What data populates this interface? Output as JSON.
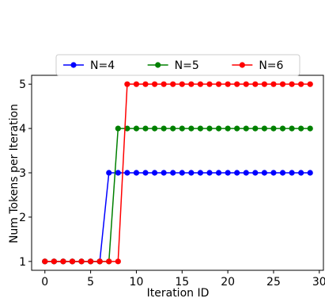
{
  "chart_data": {
    "type": "line",
    "title": "",
    "xlabel": "Iteration ID",
    "ylabel": "Num Tokens per Iteration",
    "xlim": [
      -1.45,
      30.45
    ],
    "ylim": [
      0.8,
      5.2
    ],
    "xticks": [
      0,
      5,
      10,
      15,
      20,
      25,
      30
    ],
    "yticks": [
      1,
      2,
      3,
      4,
      5
    ],
    "grid": false,
    "legend_placement": "top-center, above plot, horizontal",
    "x": [
      0,
      1,
      2,
      3,
      4,
      5,
      6,
      7,
      8,
      9,
      10,
      11,
      12,
      13,
      14,
      15,
      16,
      17,
      18,
      19,
      20,
      21,
      22,
      23,
      24,
      25,
      26,
      27,
      28,
      29
    ],
    "series": [
      {
        "name": "N=4",
        "color": "#0000ff",
        "values": [
          1,
          1,
          1,
          1,
          1,
          1,
          1,
          3,
          3,
          3,
          3,
          3,
          3,
          3,
          3,
          3,
          3,
          3,
          3,
          3,
          3,
          3,
          3,
          3,
          3,
          3,
          3,
          3,
          3,
          3
        ]
      },
      {
        "name": "N=5",
        "color": "#008000",
        "values": [
          1,
          1,
          1,
          1,
          1,
          1,
          1,
          1,
          4,
          4,
          4,
          4,
          4,
          4,
          4,
          4,
          4,
          4,
          4,
          4,
          4,
          4,
          4,
          4,
          4,
          4,
          4,
          4,
          4,
          4
        ]
      },
      {
        "name": "N=6",
        "color": "#ff0000",
        "values": [
          1,
          1,
          1,
          1,
          1,
          1,
          1,
          1,
          1,
          5,
          5,
          5,
          5,
          5,
          5,
          5,
          5,
          5,
          5,
          5,
          5,
          5,
          5,
          5,
          5,
          5,
          5,
          5,
          5,
          5
        ]
      }
    ]
  }
}
